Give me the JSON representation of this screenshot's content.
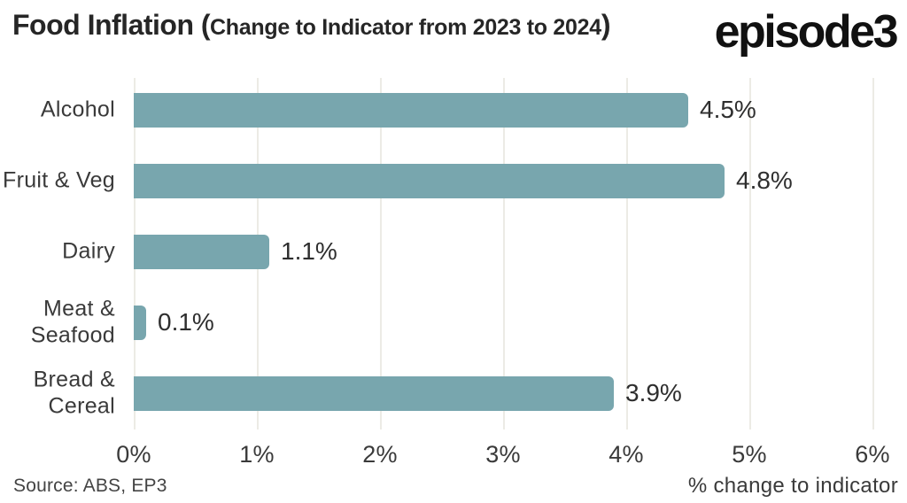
{
  "header": {
    "title_main": "Food Inflation (",
    "title_sub": "Change to Indicator from 2023 to 2024",
    "title_close": ")",
    "logo_text": "episode3"
  },
  "chart_data": {
    "type": "bar",
    "orientation": "horizontal",
    "title": "Food Inflation (Change to Indicator from 2023 to 2024)",
    "categories": [
      "Alcohol",
      "Fruit & Veg",
      "Dairy",
      "Meat & Seafood",
      "Bread & Cereal"
    ],
    "category_lines": [
      [
        "Alcohol"
      ],
      [
        "Fruit & Veg"
      ],
      [
        "Dairy"
      ],
      [
        "Meat &",
        "Seafood"
      ],
      [
        "Bread &",
        "Cereal"
      ]
    ],
    "values": [
      4.5,
      4.8,
      1.1,
      0.1,
      3.9
    ],
    "value_labels": [
      "4.5%",
      "4.8%",
      "1.1%",
      "0.1%",
      "3.9%"
    ],
    "x_ticks": [
      "0%",
      "1%",
      "2%",
      "3%",
      "4%",
      "5%",
      "6%"
    ],
    "xlim": [
      0,
      6.2
    ],
    "xlabel": "% change to indicator",
    "grid": "vertical",
    "legend": "none",
    "bar_color": "#78a6ae",
    "gridline_color": "#ecebe5"
  },
  "footer": {
    "source": "Source: ABS, EP3"
  }
}
